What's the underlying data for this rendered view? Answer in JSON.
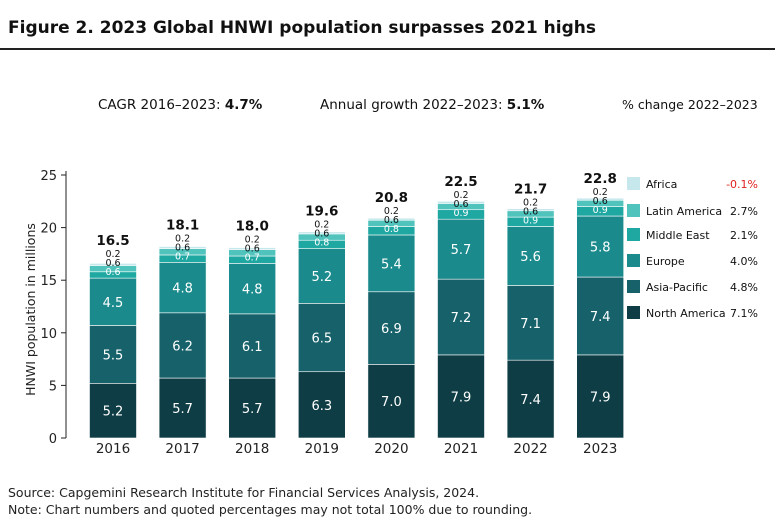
{
  "title": "Figure 2. 2023 Global HNWI population surpasses 2021 highs",
  "stats": {
    "cagr_label": "CAGR 2016–2023:",
    "cagr_value": "4.7%",
    "growth_label": "Annual growth 2022–2023:",
    "growth_value": "5.1%",
    "pct_header": "% change 2022–2023"
  },
  "source": "Source: Capgemini Research Institute for Financial Services Analysis, 2024.",
  "note": "Note: Chart numbers and quoted percentages may not total 100% due to rounding.",
  "chart_data": {
    "type": "bar",
    "stacked": true,
    "ylabel": "HNWI population in millions",
    "ylim": [
      0,
      25
    ],
    "yticks": [
      0,
      5,
      10,
      15,
      20,
      25
    ],
    "categories": [
      "2016",
      "2017",
      "2018",
      "2019",
      "2020",
      "2021",
      "2022",
      "2023"
    ],
    "totals": [
      "16.5",
      "18.1",
      "18.0",
      "19.6",
      "20.8",
      "22.5",
      "21.7",
      "22.8"
    ],
    "series": [
      {
        "name": "North America",
        "color": "#0e3d45",
        "labels": [
          "5.2",
          "5.7",
          "5.7",
          "6.3",
          "7.0",
          "7.9",
          "7.4",
          "7.9"
        ],
        "values": [
          5.2,
          5.7,
          5.7,
          6.3,
          7.0,
          7.9,
          7.4,
          7.9
        ],
        "change": "7.1%"
      },
      {
        "name": "Asia-Pacific",
        "color": "#16616a",
        "labels": [
          "5.5",
          "6.2",
          "6.1",
          "6.5",
          "6.9",
          "7.2",
          "7.1",
          "7.4"
        ],
        "values": [
          5.5,
          6.2,
          6.1,
          6.5,
          6.9,
          7.2,
          7.1,
          7.4
        ],
        "change": "4.8%"
      },
      {
        "name": "Europe",
        "color": "#1a8a8c",
        "labels": [
          "4.5",
          "4.8",
          "4.8",
          "5.2",
          "5.4",
          "5.7",
          "5.6",
          "5.8"
        ],
        "values": [
          4.5,
          4.8,
          4.8,
          5.2,
          5.4,
          5.7,
          5.6,
          5.8
        ],
        "change": "4.0%"
      },
      {
        "name": "Middle East",
        "color": "#1fa7a2",
        "labels": [
          "0.6",
          "0.7",
          "0.7",
          "0.8",
          "0.8",
          "0.9",
          "0.9",
          "0.9"
        ],
        "values": [
          0.6,
          0.7,
          0.7,
          0.8,
          0.8,
          0.9,
          0.9,
          0.9
        ],
        "change": "2.1%"
      },
      {
        "name": "Latin America",
        "color": "#4fc3bc",
        "labels": [
          "0.6",
          "0.6",
          "0.6",
          "0.6",
          "0.6",
          "0.6",
          "0.6",
          "0.6"
        ],
        "values": [
          0.6,
          0.6,
          0.6,
          0.6,
          0.6,
          0.6,
          0.6,
          0.6
        ],
        "change": "2.7%"
      },
      {
        "name": "Africa",
        "color": "#c6e8ec",
        "labels": [
          "0.2",
          "0.2",
          "0.2",
          "0.2",
          "0.2",
          "0.2",
          "0.2",
          "0.2"
        ],
        "values": [
          0.2,
          0.2,
          0.2,
          0.2,
          0.2,
          0.2,
          0.2,
          0.2
        ],
        "change": "-0.1%",
        "change_color": "#e02020"
      }
    ],
    "legend_position": "right",
    "grid": false
  }
}
